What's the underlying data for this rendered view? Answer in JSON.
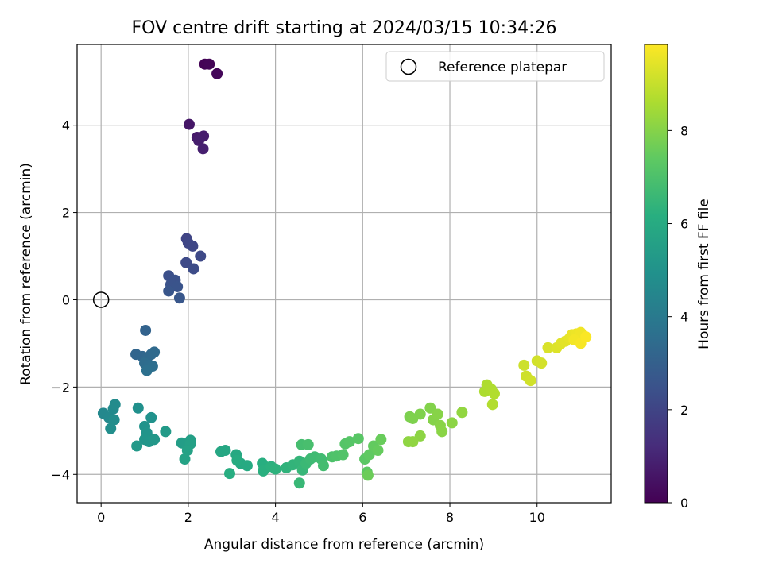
{
  "chart_data": {
    "type": "scatter",
    "title": "FOV centre drift starting at 2024/03/15 10:34:26",
    "xlabel": "Angular distance from reference (arcmin)",
    "ylabel": "Rotation from reference (arcmin)",
    "xlim": [
      -0.55,
      11.7
    ],
    "ylim": [
      -4.65,
      5.85
    ],
    "xticks": [
      0,
      2,
      4,
      6,
      8,
      10
    ],
    "yticks": [
      -4,
      -2,
      0,
      2,
      4
    ],
    "grid": true,
    "legend_position": "top-right",
    "legend": [
      "Reference platepar"
    ],
    "reference_point": {
      "x": 0,
      "y": 0
    },
    "colorbar": {
      "label": "Hours from first FF file",
      "colormap": "viridis",
      "range": [
        0,
        9.85
      ],
      "ticks": [
        0,
        2,
        4,
        6,
        8
      ]
    },
    "points": [
      {
        "x": 2.38,
        "y": 5.4,
        "h": 0.05
      },
      {
        "x": 2.48,
        "y": 5.4,
        "h": 0.1
      },
      {
        "x": 2.66,
        "y": 5.18,
        "h": 0.15
      },
      {
        "x": 2.02,
        "y": 4.02,
        "h": 0.6
      },
      {
        "x": 2.2,
        "y": 3.72,
        "h": 0.7
      },
      {
        "x": 2.35,
        "y": 3.75,
        "h": 0.75
      },
      {
        "x": 2.24,
        "y": 3.65,
        "h": 0.8
      },
      {
        "x": 2.34,
        "y": 3.46,
        "h": 0.85
      },
      {
        "x": 1.96,
        "y": 1.4,
        "h": 2.0
      },
      {
        "x": 2.0,
        "y": 1.3,
        "h": 2.05
      },
      {
        "x": 2.1,
        "y": 1.23,
        "h": 2.1
      },
      {
        "x": 2.28,
        "y": 1.0,
        "h": 2.15
      },
      {
        "x": 1.95,
        "y": 0.85,
        "h": 2.2
      },
      {
        "x": 2.12,
        "y": 0.71,
        "h": 2.25
      },
      {
        "x": 1.55,
        "y": 0.55,
        "h": 2.4
      },
      {
        "x": 1.7,
        "y": 0.45,
        "h": 2.45
      },
      {
        "x": 1.6,
        "y": 0.35,
        "h": 2.5
      },
      {
        "x": 1.75,
        "y": 0.3,
        "h": 2.55
      },
      {
        "x": 1.55,
        "y": 0.2,
        "h": 2.6
      },
      {
        "x": 1.8,
        "y": 0.04,
        "h": 2.65
      },
      {
        "x": 1.02,
        "y": -0.7,
        "h": 3.1
      },
      {
        "x": 0.8,
        "y": -1.25,
        "h": 3.2
      },
      {
        "x": 0.95,
        "y": -1.3,
        "h": 3.25
      },
      {
        "x": 1.05,
        "y": -1.35,
        "h": 3.3
      },
      {
        "x": 1.15,
        "y": -1.25,
        "h": 3.35
      },
      {
        "x": 1.22,
        "y": -1.2,
        "h": 3.4
      },
      {
        "x": 1.0,
        "y": -1.45,
        "h": 3.45
      },
      {
        "x": 1.1,
        "y": -1.5,
        "h": 3.5
      },
      {
        "x": 1.18,
        "y": -1.52,
        "h": 3.55
      },
      {
        "x": 1.05,
        "y": -1.62,
        "h": 3.6
      },
      {
        "x": 0.05,
        "y": -2.6,
        "h": 4.55
      },
      {
        "x": 0.18,
        "y": -2.7,
        "h": 4.6
      },
      {
        "x": 0.28,
        "y": -2.5,
        "h": 4.65
      },
      {
        "x": 0.32,
        "y": -2.4,
        "h": 4.7
      },
      {
        "x": 0.3,
        "y": -2.75,
        "h": 4.75
      },
      {
        "x": 0.22,
        "y": -2.95,
        "h": 4.8
      },
      {
        "x": 0.85,
        "y": -2.48,
        "h": 4.9
      },
      {
        "x": 1.15,
        "y": -2.7,
        "h": 4.95
      },
      {
        "x": 1.0,
        "y": -2.9,
        "h": 5.0
      },
      {
        "x": 1.05,
        "y": -3.05,
        "h": 5.05
      },
      {
        "x": 1.0,
        "y": -3.2,
        "h": 5.1
      },
      {
        "x": 1.1,
        "y": -3.25,
        "h": 5.15
      },
      {
        "x": 1.22,
        "y": -3.2,
        "h": 5.2
      },
      {
        "x": 0.82,
        "y": -3.35,
        "h": 5.25
      },
      {
        "x": 1.48,
        "y": -3.02,
        "h": 5.3
      },
      {
        "x": 1.85,
        "y": -3.28,
        "h": 5.45
      },
      {
        "x": 2.05,
        "y": -3.22,
        "h": 5.5
      },
      {
        "x": 2.05,
        "y": -3.3,
        "h": 5.55
      },
      {
        "x": 1.98,
        "y": -3.45,
        "h": 5.6
      },
      {
        "x": 1.92,
        "y": -3.65,
        "h": 5.65
      },
      {
        "x": 2.75,
        "y": -3.48,
        "h": 5.8
      },
      {
        "x": 2.85,
        "y": -3.45,
        "h": 5.85
      },
      {
        "x": 3.1,
        "y": -3.55,
        "h": 5.9
      },
      {
        "x": 3.2,
        "y": -3.75,
        "h": 5.95
      },
      {
        "x": 3.35,
        "y": -3.8,
        "h": 6.0
      },
      {
        "x": 3.12,
        "y": -3.68,
        "h": 6.05
      },
      {
        "x": 2.95,
        "y": -3.98,
        "h": 6.1
      },
      {
        "x": 3.7,
        "y": -3.75,
        "h": 6.15
      },
      {
        "x": 3.72,
        "y": -3.92,
        "h": 6.2
      },
      {
        "x": 3.9,
        "y": -3.82,
        "h": 6.25
      },
      {
        "x": 4.0,
        "y": -3.88,
        "h": 6.3
      },
      {
        "x": 4.25,
        "y": -3.85,
        "h": 6.35
      },
      {
        "x": 4.4,
        "y": -3.78,
        "h": 6.4
      },
      {
        "x": 4.55,
        "y": -3.7,
        "h": 6.45
      },
      {
        "x": 4.62,
        "y": -3.9,
        "h": 6.5
      },
      {
        "x": 4.55,
        "y": -4.2,
        "h": 6.55
      },
      {
        "x": 4.7,
        "y": -3.75,
        "h": 6.6
      },
      {
        "x": 4.8,
        "y": -3.65,
        "h": 6.65
      },
      {
        "x": 4.9,
        "y": -3.6,
        "h": 6.7
      },
      {
        "x": 5.05,
        "y": -3.65,
        "h": 6.75
      },
      {
        "x": 5.1,
        "y": -3.8,
        "h": 6.8
      },
      {
        "x": 4.6,
        "y": -3.32,
        "h": 6.85
      },
      {
        "x": 4.75,
        "y": -3.32,
        "h": 6.9
      },
      {
        "x": 5.3,
        "y": -3.6,
        "h": 7.0
      },
      {
        "x": 5.4,
        "y": -3.58,
        "h": 7.05
      },
      {
        "x": 5.55,
        "y": -3.55,
        "h": 7.1
      },
      {
        "x": 5.6,
        "y": -3.3,
        "h": 7.15
      },
      {
        "x": 5.7,
        "y": -3.25,
        "h": 7.2
      },
      {
        "x": 5.9,
        "y": -3.18,
        "h": 7.25
      },
      {
        "x": 6.05,
        "y": -3.65,
        "h": 7.3
      },
      {
        "x": 6.1,
        "y": -3.95,
        "h": 7.35
      },
      {
        "x": 6.15,
        "y": -3.55,
        "h": 7.4
      },
      {
        "x": 6.25,
        "y": -3.35,
        "h": 7.45
      },
      {
        "x": 6.35,
        "y": -3.45,
        "h": 7.5
      },
      {
        "x": 6.42,
        "y": -3.2,
        "h": 7.55
      },
      {
        "x": 6.12,
        "y": -4.02,
        "h": 7.6
      },
      {
        "x": 7.08,
        "y": -2.68,
        "h": 7.85
      },
      {
        "x": 7.15,
        "y": -2.72,
        "h": 7.88
      },
      {
        "x": 7.32,
        "y": -2.62,
        "h": 7.9
      },
      {
        "x": 7.55,
        "y": -2.48,
        "h": 7.95
      },
      {
        "x": 7.62,
        "y": -2.75,
        "h": 8.0
      },
      {
        "x": 7.72,
        "y": -2.62,
        "h": 8.02
      },
      {
        "x": 7.78,
        "y": -2.88,
        "h": 8.05
      },
      {
        "x": 7.82,
        "y": -3.02,
        "h": 8.08
      },
      {
        "x": 8.05,
        "y": -2.82,
        "h": 8.1
      },
      {
        "x": 7.32,
        "y": -3.12,
        "h": 8.12
      },
      {
        "x": 7.05,
        "y": -3.25,
        "h": 8.15
      },
      {
        "x": 7.15,
        "y": -3.25,
        "h": 8.17
      },
      {
        "x": 8.28,
        "y": -2.58,
        "h": 8.2
      },
      {
        "x": 8.8,
        "y": -2.1,
        "h": 8.6
      },
      {
        "x": 8.85,
        "y": -1.95,
        "h": 8.63
      },
      {
        "x": 8.95,
        "y": -2.05,
        "h": 8.65
      },
      {
        "x": 9.02,
        "y": -2.15,
        "h": 8.68
      },
      {
        "x": 8.98,
        "y": -2.4,
        "h": 8.7
      },
      {
        "x": 9.7,
        "y": -1.5,
        "h": 9.1
      },
      {
        "x": 9.75,
        "y": -1.75,
        "h": 9.12
      },
      {
        "x": 9.85,
        "y": -1.85,
        "h": 9.15
      },
      {
        "x": 10.0,
        "y": -1.4,
        "h": 9.18
      },
      {
        "x": 10.1,
        "y": -1.45,
        "h": 9.2
      },
      {
        "x": 10.25,
        "y": -1.1,
        "h": 9.3
      },
      {
        "x": 10.45,
        "y": -1.1,
        "h": 9.35
      },
      {
        "x": 10.55,
        "y": -1.0,
        "h": 9.4
      },
      {
        "x": 10.65,
        "y": -0.95,
        "h": 9.45
      },
      {
        "x": 10.75,
        "y": -0.88,
        "h": 9.5
      },
      {
        "x": 10.8,
        "y": -0.8,
        "h": 9.55
      },
      {
        "x": 10.9,
        "y": -0.78,
        "h": 9.6
      },
      {
        "x": 11.0,
        "y": -0.75,
        "h": 9.65
      },
      {
        "x": 10.85,
        "y": -0.92,
        "h": 9.7
      },
      {
        "x": 11.0,
        "y": -1.0,
        "h": 9.75
      },
      {
        "x": 11.12,
        "y": -0.85,
        "h": 9.8
      }
    ]
  }
}
